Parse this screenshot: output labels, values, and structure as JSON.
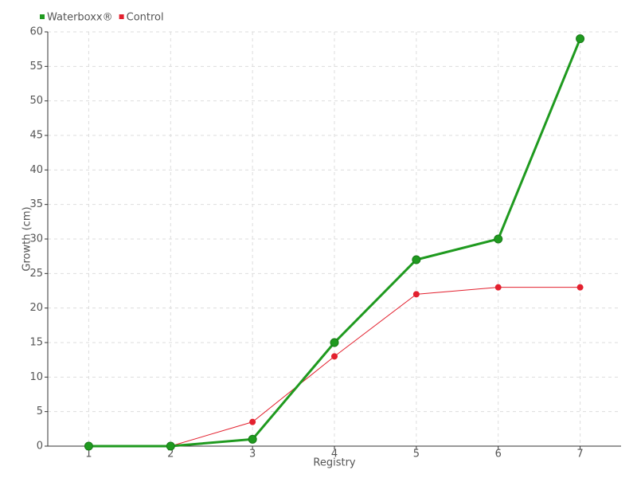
{
  "chart_data": {
    "type": "line",
    "x_label": "Registry",
    "y_label": "Growth (cm)",
    "categories": [
      "1",
      "2",
      "3",
      "4",
      "5",
      "6",
      "7"
    ],
    "series": [
      {
        "name": "Waterboxx®",
        "color": "#1f9a1f",
        "values": [
          0,
          0,
          1,
          15,
          27,
          30,
          59
        ]
      },
      {
        "name": "Control",
        "color": "#e3202e",
        "values": [
          0,
          0,
          3.5,
          13,
          22,
          23,
          23
        ]
      }
    ],
    "ylim": [
      0,
      60
    ],
    "yticks": [
      0,
      5,
      10,
      15,
      20,
      25,
      30,
      35,
      40,
      45,
      50,
      55,
      60
    ],
    "grid": true,
    "legend": "top-left"
  }
}
